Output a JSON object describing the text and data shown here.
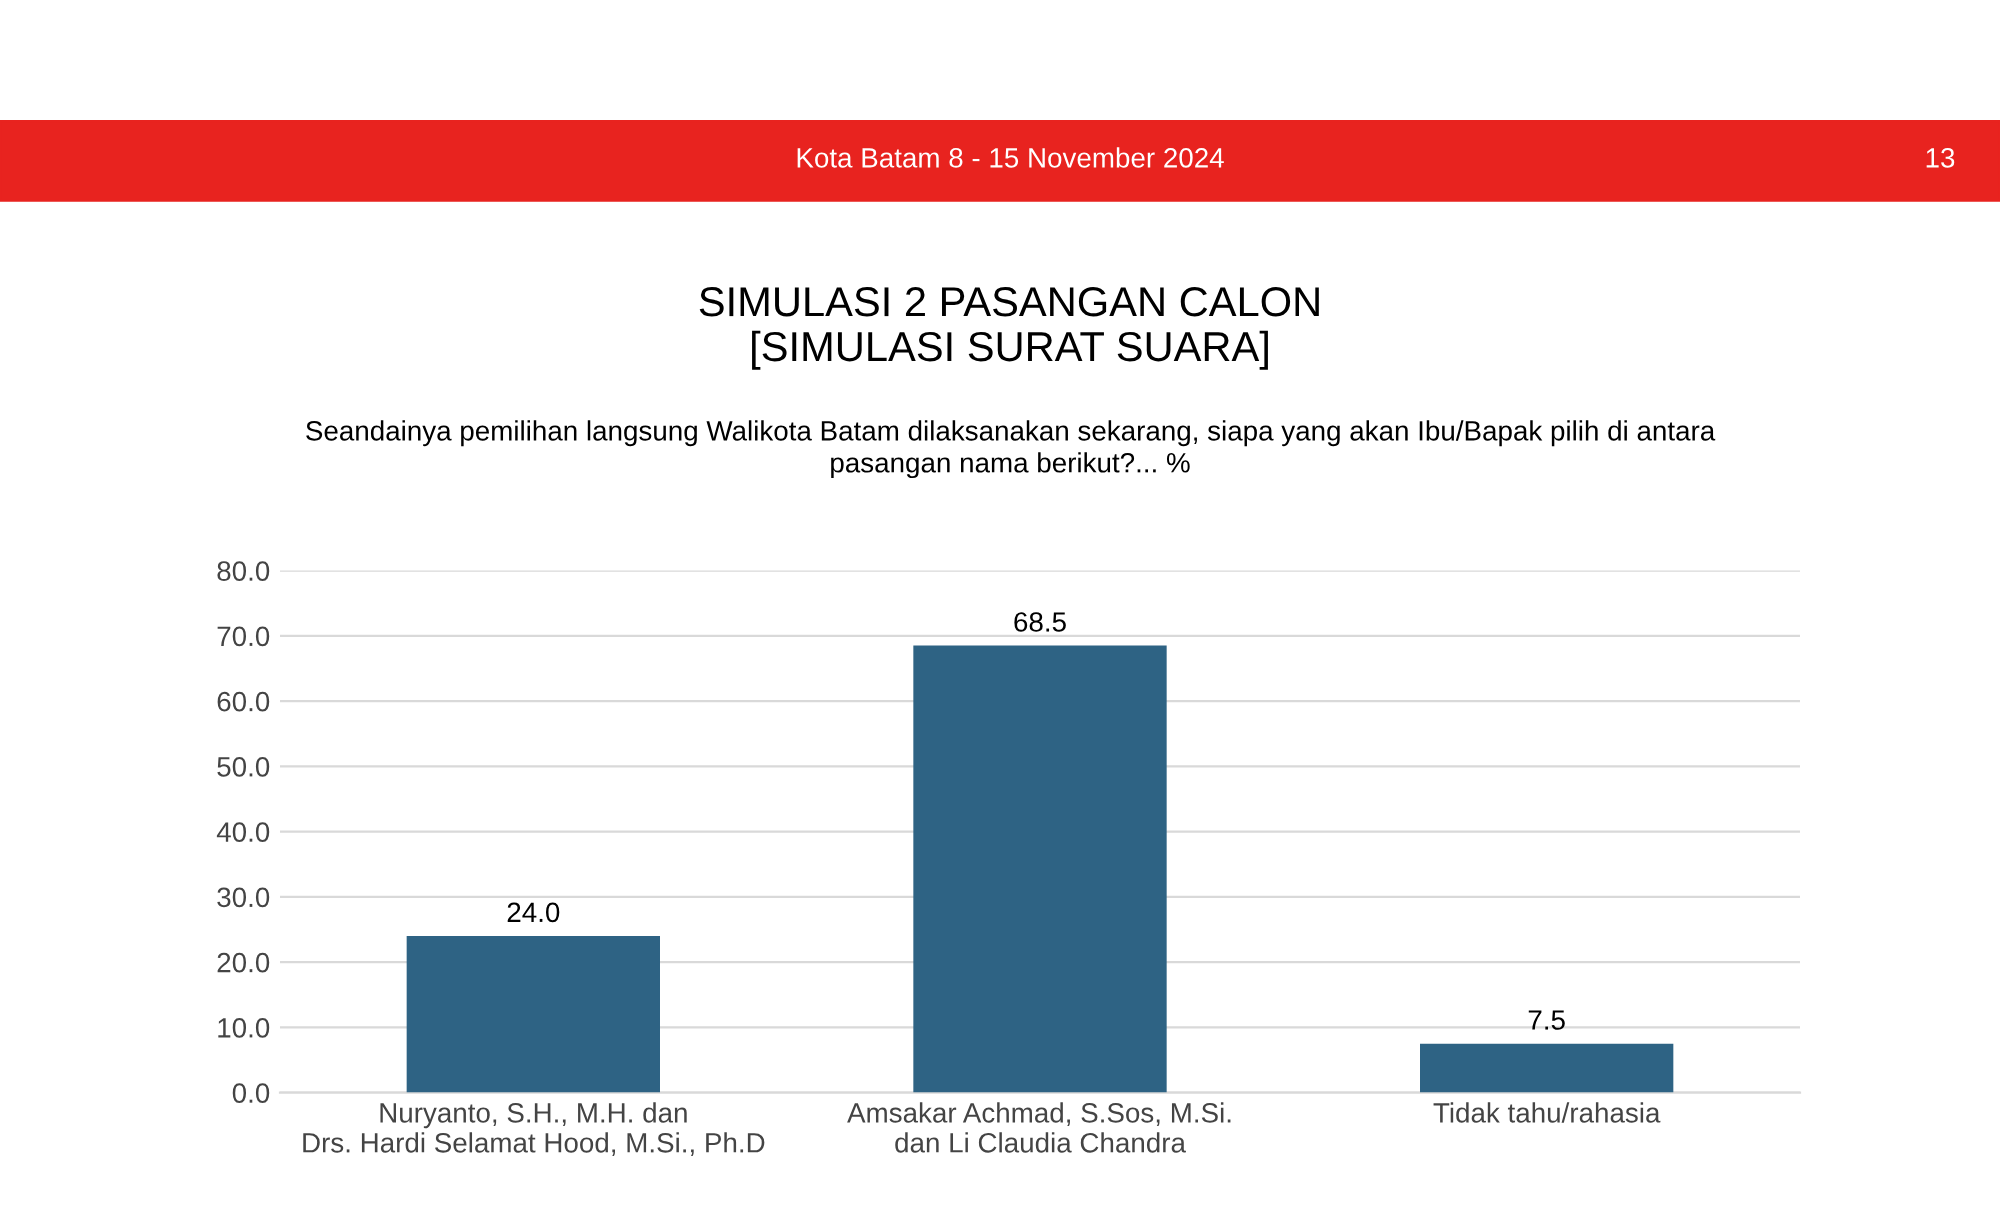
{
  "chart_data": {
    "type": "bar",
    "title": "SIMULASI 2 PASANGAN CALON\n[SIMULASI SURAT SUARA]",
    "subtitle": "Seandainya pemilihan langsung Walikota Batam dilaksanakan sekarang, siapa yang akan Ibu/Bapak pilih di antara\npasangan nama berikut?... %",
    "annotations": [
      "Kota Batam 8 - 15 November 2024",
      "13"
    ],
    "categories": [
      "Nuryanto, S.H., M.H. dan\nDrs. Hardi Selamat Hood, M.Si., Ph.D",
      "Amsakar Achmad, S.Sos, M.Si.\ndan Li Claudia Chandra",
      "Tidak tahu/rahasia"
    ],
    "values": [
      24.0,
      68.5,
      7.5
    ],
    "value_labels": [
      "24.0",
      "68.5",
      "7.5"
    ],
    "color": "#2e6384",
    "ylim": [
      0,
      80
    ],
    "yticks": [
      {
        "value": 0,
        "label": "0.0"
      },
      {
        "value": 10,
        "label": "10.0"
      },
      {
        "value": 20,
        "label": "20.0"
      },
      {
        "value": 30,
        "label": "30.0"
      },
      {
        "value": 40,
        "label": "40.0"
      },
      {
        "value": 50,
        "label": "50.0"
      },
      {
        "value": 60,
        "label": "60.0"
      },
      {
        "value": 70,
        "label": "70.0"
      },
      {
        "value": 80,
        "label": "80.0"
      }
    ],
    "grid": "y",
    "legend": false
  }
}
